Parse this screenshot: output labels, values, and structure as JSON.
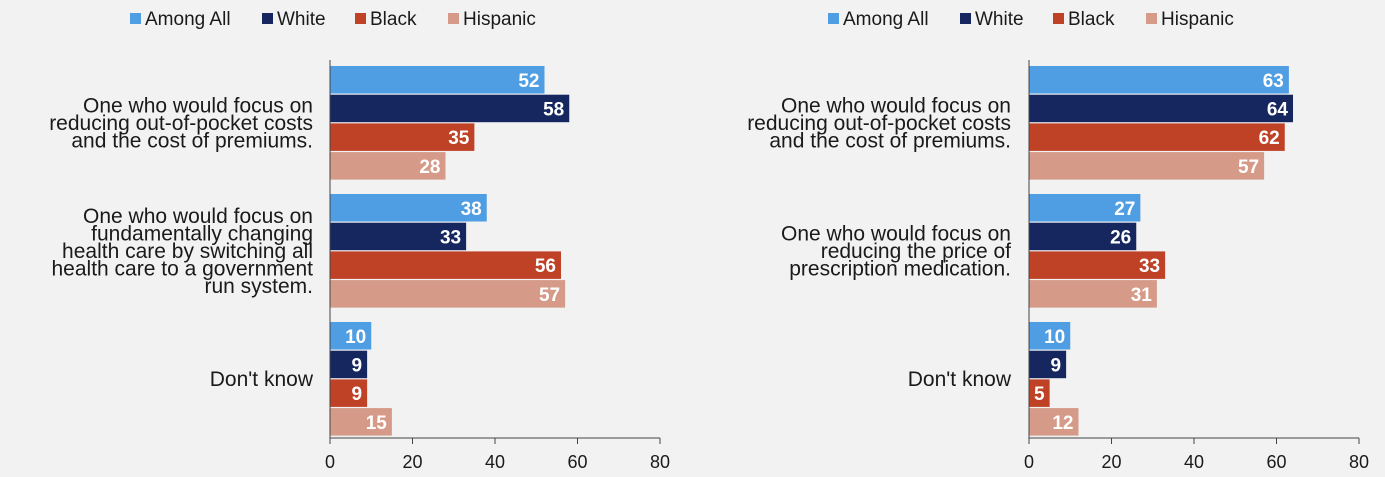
{
  "chart_data": [
    {
      "type": "bar",
      "orientation": "horizontal",
      "categories": [
        "One who would focus on reducing out-of-pocket costs and the cost of premiums.",
        "One who would focus on fundamentally changing health care by switching all health care to a government run system.",
        "Don't know"
      ],
      "category_lines": [
        [
          "One who would focus on",
          "reducing out-of-pocket costs",
          "and the cost of premiums."
        ],
        [
          "One who would focus on",
          "fundamentally changing",
          "health care by switching all",
          "health care to a government",
          "run system."
        ],
        [
          "Don't know"
        ]
      ],
      "series": [
        {
          "name": "Among All",
          "color": "#4f9ee3",
          "values": [
            52,
            38,
            10
          ]
        },
        {
          "name": "White",
          "color": "#16275f",
          "values": [
            58,
            33,
            9
          ]
        },
        {
          "name": "Black",
          "color": "#bf4227",
          "values": [
            35,
            56,
            9
          ]
        },
        {
          "name": "Hispanic",
          "color": "#d59a88",
          "values": [
            28,
            57,
            15
          ]
        }
      ],
      "xlim": [
        0,
        80
      ],
      "xticks": [
        "0",
        "20",
        "40",
        "60",
        "80"
      ],
      "legend": "top",
      "grid": false,
      "title": "",
      "xlabel": "",
      "ylabel": ""
    },
    {
      "type": "bar",
      "orientation": "horizontal",
      "categories": [
        "One who would focus on reducing out-of-pocket costs and the cost of premiums.",
        "One who would focus on reducing the price of prescription medication.",
        "Don't know"
      ],
      "category_lines": [
        [
          "One who would focus on",
          "reducing out-of-pocket costs",
          "and the cost of premiums."
        ],
        [
          "One who would focus on",
          "reducing the price of",
          "prescription medication."
        ],
        [
          "Don't know"
        ]
      ],
      "series": [
        {
          "name": "Among All",
          "color": "#4f9ee3",
          "values": [
            63,
            27,
            10
          ]
        },
        {
          "name": "White",
          "color": "#16275f",
          "values": [
            64,
            26,
            9
          ]
        },
        {
          "name": "Black",
          "color": "#bf4227",
          "values": [
            62,
            33,
            5
          ]
        },
        {
          "name": "Hispanic",
          "color": "#d59a88",
          "values": [
            57,
            31,
            12
          ]
        }
      ],
      "xlim": [
        0,
        80
      ],
      "xticks": [
        "0",
        "20",
        "40",
        "60",
        "80"
      ],
      "legend": "top",
      "grid": false,
      "title": "",
      "xlabel": "",
      "ylabel": ""
    }
  ]
}
